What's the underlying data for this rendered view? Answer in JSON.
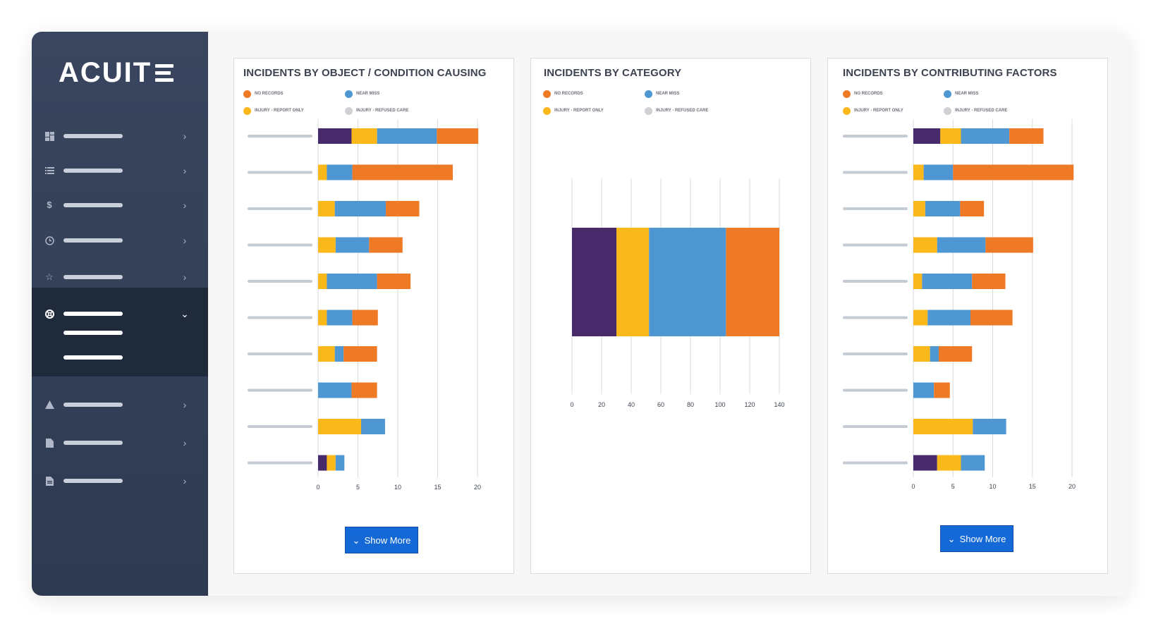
{
  "brand": {
    "logo_text": "ACUIT"
  },
  "colors": {
    "no_records": "#ef7a26",
    "near_miss": "#4f97d2",
    "injury_report_only": "#fbb81a",
    "injury_refused_care": "#cfd1d4",
    "purple": "#472a69",
    "accent_button": "#1469d6"
  },
  "sidebar": {
    "items": [
      {
        "icon": "dashboard-icon",
        "state": "collapsed"
      },
      {
        "icon": "list-icon",
        "state": "collapsed"
      },
      {
        "icon": "dollar-icon",
        "state": "collapsed"
      },
      {
        "icon": "clock-icon",
        "state": "collapsed"
      },
      {
        "icon": "star-icon",
        "state": "collapsed"
      },
      {
        "icon": "lifebuoy-icon",
        "state": "expanded"
      },
      {
        "icon": "warning-icon",
        "state": "collapsed"
      },
      {
        "icon": "file-icon",
        "state": "collapsed"
      },
      {
        "icon": "document-icon",
        "state": "collapsed"
      }
    ]
  },
  "legend": {
    "no_records": "NO RECORDS",
    "near_miss": "NEAR MISS",
    "injury_report_only": "INJURY - REPORT ONLY",
    "injury_refused_care": "INJURY - REFUSED CARE"
  },
  "panels": {
    "object": {
      "title": "INCIDENTS BY OBJECT / CONDITION CAUSING",
      "button_label": "Show More"
    },
    "category": {
      "title": "INCIDENTS BY CATEGORY"
    },
    "factors": {
      "title": "INCIDENTS BY CONTRIBUTING FACTORS",
      "button_label": "Show More"
    }
  },
  "chart_data": [
    {
      "type": "bar",
      "orientation": "horizontal",
      "stacked": true,
      "title": "INCIDENTS BY OBJECT / CONDITION CAUSING",
      "xlim": [
        0,
        20
      ],
      "xticks": [
        0,
        5,
        10,
        15,
        20
      ],
      "segment_order": [
        "purple",
        "injury_report_only",
        "near_miss",
        "no_records"
      ],
      "rows": [
        [
          4.2,
          3.2,
          7.5,
          5.2
        ],
        [
          0,
          1.1,
          3.2,
          12.6
        ],
        [
          0,
          2.1,
          6.4,
          4.2
        ],
        [
          0,
          2.2,
          4.2,
          4.2
        ],
        [
          0,
          1.1,
          6.3,
          4.2
        ],
        [
          0,
          1.1,
          3.2,
          3.2
        ],
        [
          0,
          2.1,
          1.1,
          4.2
        ],
        [
          0,
          0,
          4.2,
          3.2
        ],
        [
          0,
          5.4,
          3.0,
          0
        ],
        [
          1.1,
          1.1,
          1.1,
          0
        ]
      ],
      "grid": true,
      "legend_position": "top"
    },
    {
      "type": "bar",
      "orientation": "horizontal",
      "stacked": true,
      "title": "INCIDENTS BY CATEGORY",
      "xlim": [
        0,
        140
      ],
      "xticks": [
        0,
        20,
        40,
        60,
        80,
        100,
        120,
        140
      ],
      "segment_order": [
        "purple",
        "injury_report_only",
        "near_miss",
        "no_records"
      ],
      "rows": [
        [
          30,
          22,
          52,
          36
        ]
      ],
      "grid": true,
      "legend_position": "top"
    },
    {
      "type": "bar",
      "orientation": "horizontal",
      "stacked": true,
      "title": "INCIDENTS BY CONTRIBUTING FACTORS",
      "xlim": [
        0,
        20
      ],
      "xticks": [
        0,
        5,
        10,
        15,
        20
      ],
      "segment_order": [
        "purple",
        "injury_report_only",
        "near_miss",
        "no_records"
      ],
      "rows": [
        [
          3.4,
          2.6,
          6.1,
          4.3
        ],
        [
          0,
          1.3,
          3.7,
          15.2
        ],
        [
          0,
          1.5,
          4.4,
          3.0
        ],
        [
          0,
          3.0,
          6.1,
          6.0
        ],
        [
          0,
          1.1,
          6.3,
          4.2
        ],
        [
          0,
          1.8,
          5.4,
          5.3
        ],
        [
          0,
          2.1,
          1.1,
          4.2
        ],
        [
          0,
          0,
          2.6,
          2.0
        ],
        [
          0,
          7.5,
          4.2,
          0
        ],
        [
          3.0,
          3.0,
          3.0,
          0
        ]
      ],
      "grid": true,
      "legend_position": "top"
    }
  ]
}
